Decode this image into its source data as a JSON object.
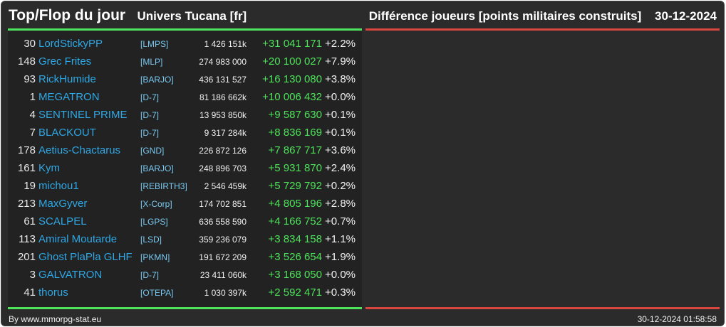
{
  "header": {
    "title": "Top/Flop du jour",
    "subtitle": "Univers Tucana [fr]",
    "description": "Différence joueurs [points militaires construits]",
    "date": "30-12-2024"
  },
  "colors": {
    "top_accent": "#4de35a",
    "flop_accent": "#d9463d",
    "name": "#2ea8e6"
  },
  "top_rows": [
    {
      "rank": "30",
      "name": "LordStickyPP",
      "tag": "[LMPS]",
      "points": "1 426 151k",
      "diff": "+31 041 171",
      "pct": "+2.2%"
    },
    {
      "rank": "148",
      "name": "Grec Frites",
      "tag": "[MLP]",
      "points": "274 983 000",
      "diff": "+20 100 027",
      "pct": "+7.9%"
    },
    {
      "rank": "93",
      "name": "RickHumide",
      "tag": "[BARJO]",
      "points": "436 131 527",
      "diff": "+16 130 080",
      "pct": "+3.8%"
    },
    {
      "rank": "1",
      "name": "MEGATRON",
      "tag": "[D-7]",
      "points": "81 186 662k",
      "diff": "+10 006 432",
      "pct": "+0.0%"
    },
    {
      "rank": "4",
      "name": "SENTINEL PRIME",
      "tag": "[D-7]",
      "points": "13 953 850k",
      "diff": "+9 587 630",
      "pct": "+0.1%"
    },
    {
      "rank": "7",
      "name": "BLACKOUT",
      "tag": "[D-7]",
      "points": "9 317 284k",
      "diff": "+8 836 169",
      "pct": "+0.1%"
    },
    {
      "rank": "178",
      "name": "Aetius-Chactarus",
      "tag": "[GND]",
      "points": "226 872 126",
      "diff": "+7 867 717",
      "pct": "+3.6%"
    },
    {
      "rank": "161",
      "name": "Kym",
      "tag": "[BARJO]",
      "points": "248 896 703",
      "diff": "+5 931 870",
      "pct": "+2.4%"
    },
    {
      "rank": "19",
      "name": "michou1",
      "tag": "[REBIRTH3]",
      "points": "2 546 459k",
      "diff": "+5 729 792",
      "pct": "+0.2%"
    },
    {
      "rank": "213",
      "name": "MaxGyver",
      "tag": "[X-Corp]",
      "points": "174 702 851",
      "diff": "+4 805 196",
      "pct": "+2.8%"
    },
    {
      "rank": "61",
      "name": "SCALPEL",
      "tag": "[LGPS]",
      "points": "636 558 590",
      "diff": "+4 166 752",
      "pct": "+0.7%"
    },
    {
      "rank": "113",
      "name": "Amiral Moutarde",
      "tag": "[LSD]",
      "points": "359 236 079",
      "diff": "+3 834 158",
      "pct": "+1.1%"
    },
    {
      "rank": "201",
      "name": "Ghost PlaPla GLHF",
      "tag": "[PKMN]",
      "points": "191 672 209",
      "diff": "+3 526 654",
      "pct": "+1.9%"
    },
    {
      "rank": "3",
      "name": "GALVATRON",
      "tag": "[D-7]",
      "points": "23 411 060k",
      "diff": "+3 168 050",
      "pct": "+0.0%"
    },
    {
      "rank": "41",
      "name": "thorus",
      "tag": "[OTEPA]",
      "points": "1 030 397k",
      "diff": "+2 592 471",
      "pct": "+0.3%"
    }
  ],
  "footer": {
    "source": "By www.mmorpg-stat.eu",
    "timestamp": "30-12-2024 01:58:58"
  }
}
